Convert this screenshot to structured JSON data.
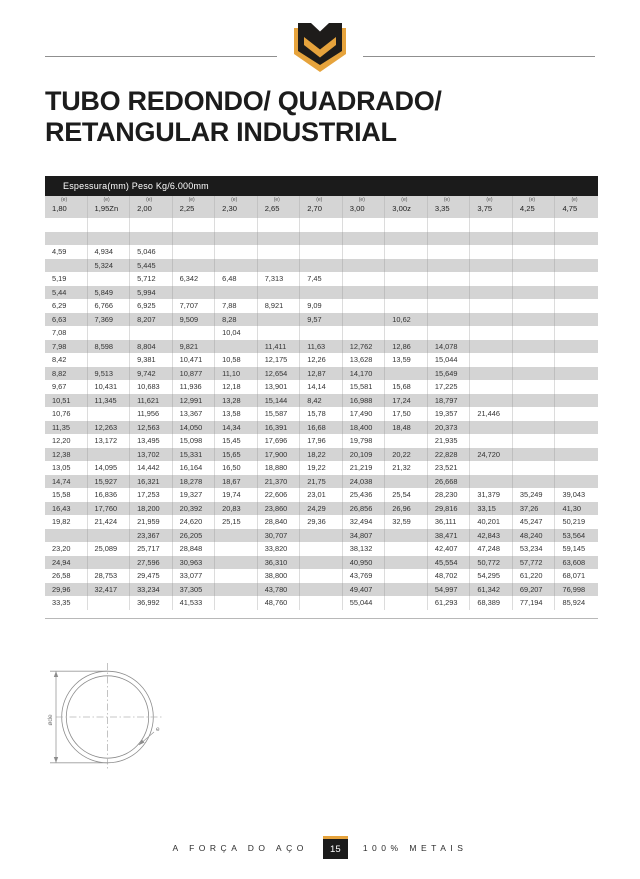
{
  "header": {
    "title_line1": "TUBO REDONDO/ QUADRADO/",
    "title_line2": "RETANGULAR INDUSTRIAL"
  },
  "logo": {
    "name": "metais-shield-logo",
    "gold": "#E6A33C",
    "black": "#1E1C1A"
  },
  "table": {
    "caption": "Espessura(mm) Peso Kg/6.000mm",
    "col_sublabel": "(e)",
    "columns": [
      "1,80",
      "1,95Zn",
      "2,00",
      "2,25",
      "2,30",
      "2,65",
      "2,70",
      "3,00",
      "3,00z",
      "3,35",
      "3,75",
      "4,25",
      "4,75"
    ],
    "rows": [
      [
        "",
        "",
        "",
        "",
        "",
        "",
        "",
        "",
        "",
        "",
        "",
        "",
        ""
      ],
      [
        "",
        "",
        "",
        "",
        "",
        "",
        "",
        "",
        "",
        "",
        "",
        "",
        ""
      ],
      [
        "4,59",
        "4,934",
        "5,046",
        "",
        "",
        "",
        "",
        "",
        "",
        "",
        "",
        "",
        ""
      ],
      [
        "",
        "5,324",
        "5,445",
        "",
        "",
        "",
        "",
        "",
        "",
        "",
        "",
        "",
        ""
      ],
      [
        "5,19",
        "",
        "5,712",
        "6,342",
        "6,48",
        "7,313",
        "7,45",
        "",
        "",
        "",
        "",
        "",
        ""
      ],
      [
        "5,44",
        "5,849",
        "5,994",
        "",
        "",
        "",
        "",
        "",
        "",
        "",
        "",
        "",
        ""
      ],
      [
        "6,29",
        "6,766",
        "6,925",
        "7,707",
        "7,88",
        "8,921",
        "9,09",
        "",
        "",
        "",
        "",
        "",
        ""
      ],
      [
        "6,63",
        "7,369",
        "8,207",
        "9,509",
        "8,28",
        "",
        "9,57",
        "",
        "10,62",
        "",
        "",
        "",
        ""
      ],
      [
        "7,08",
        "",
        "",
        "",
        "10,04",
        "",
        "",
        "",
        "",
        "",
        "",
        "",
        ""
      ],
      [
        "7,98",
        "8,598",
        "8,804",
        "9,821",
        "",
        "11,411",
        "11,63",
        "12,762",
        "12,86",
        "14,078",
        "",
        "",
        ""
      ],
      [
        "8,42",
        "",
        "9,381",
        "10,471",
        "10,58",
        "12,175",
        "12,26",
        "13,628",
        "13,59",
        "15,044",
        "",
        "",
        ""
      ],
      [
        "8,82",
        "9,513",
        "9,742",
        "10,877",
        "11,10",
        "12,654",
        "12,87",
        "14,170",
        "",
        "15,649",
        "",
        "",
        ""
      ],
      [
        "9,67",
        "10,431",
        "10,683",
        "11,936",
        "12,18",
        "13,901",
        "14,14",
        "15,581",
        "15,68",
        "17,225",
        "",
        "",
        ""
      ],
      [
        "10,51",
        "11,345",
        "11,621",
        "12,991",
        "13,28",
        "15,144",
        "8,42",
        "16,988",
        "17,24",
        "18,797",
        "",
        "",
        ""
      ],
      [
        "10,76",
        "",
        "11,956",
        "13,367",
        "13,58",
        "15,587",
        "15,78",
        "17,490",
        "17,50",
        "19,357",
        "21,446",
        "",
        ""
      ],
      [
        "11,35",
        "12,263",
        "12,563",
        "14,050",
        "14,34",
        "16,391",
        "16,68",
        "18,400",
        "18,48",
        "20,373",
        "",
        "",
        ""
      ],
      [
        "12,20",
        "13,172",
        "13,495",
        "15,098",
        "15,45",
        "17,696",
        "17,96",
        "19,798",
        "",
        "21,935",
        "",
        "",
        ""
      ],
      [
        "12,38",
        "",
        "13,702",
        "15,331",
        "15,65",
        "17,900",
        "18,22",
        "20,109",
        "20,22",
        "22,828",
        "24,720",
        "",
        ""
      ],
      [
        "13,05",
        "14,095",
        "14,442",
        "16,164",
        "16,50",
        "18,880",
        "19,22",
        "21,219",
        "21,32",
        "23,521",
        "",
        "",
        ""
      ],
      [
        "14,74",
        "15,927",
        "16,321",
        "18,278",
        "18,67",
        "21,370",
        "21,75",
        "24,038",
        "",
        "26,668",
        "",
        "",
        ""
      ],
      [
        "15,58",
        "16,836",
        "17,253",
        "19,327",
        "19,74",
        "22,606",
        "23,01",
        "25,436",
        "25,54",
        "28,230",
        "31,379",
        "35,249",
        "39,043"
      ],
      [
        "16,43",
        "17,760",
        "18,200",
        "20,392",
        "20,83",
        "23,860",
        "24,29",
        "26,856",
        "26,96",
        "29,816",
        "33,15",
        "37,26",
        "41,30"
      ],
      [
        "19,82",
        "21,424",
        "21,959",
        "24,620",
        "25,15",
        "28,840",
        "29,36",
        "32,494",
        "32,59",
        "36,111",
        "40,201",
        "45,247",
        "50,219"
      ],
      [
        "",
        "",
        "23,367",
        "26,205",
        "",
        "30,707",
        "",
        "34,807",
        "",
        "38,471",
        "42,843",
        "48,240",
        "53,564"
      ],
      [
        "23,20",
        "25,089",
        "25,717",
        "28,848",
        "",
        "33,820",
        "",
        "38,132",
        "",
        "42,407",
        "47,248",
        "53,234",
        "59,145"
      ],
      [
        "24,94",
        "",
        "27,596",
        "30,963",
        "",
        "36,310",
        "",
        "40,950",
        "",
        "45,554",
        "50,772",
        "57,772",
        "63,608"
      ],
      [
        "26,58",
        "28,753",
        "29,475",
        "33,077",
        "",
        "38,800",
        "",
        "43,769",
        "",
        "48,702",
        "54,295",
        "61,220",
        "68,071"
      ],
      [
        "29,96",
        "32,417",
        "33,234",
        "37,305",
        "",
        "43,780",
        "",
        "49,407",
        "",
        "54,997",
        "61,342",
        "69,207",
        "76,998"
      ],
      [
        "33,35",
        "",
        "36,992",
        "41,533",
        "",
        "48,760",
        "",
        "55,044",
        "",
        "61,293",
        "68,389",
        "77,194",
        "85,924"
      ]
    ]
  },
  "diagram": {
    "diameter_label": "øde",
    "thickness_label": "e"
  },
  "footer": {
    "left_text": "A FORÇA DO AÇO",
    "page_number": "15",
    "right_text": "100% METAIS"
  },
  "colors": {
    "accent": "#E6A33C",
    "bar": "#1B1B1B",
    "row_alt": "#D4D4D4"
  }
}
